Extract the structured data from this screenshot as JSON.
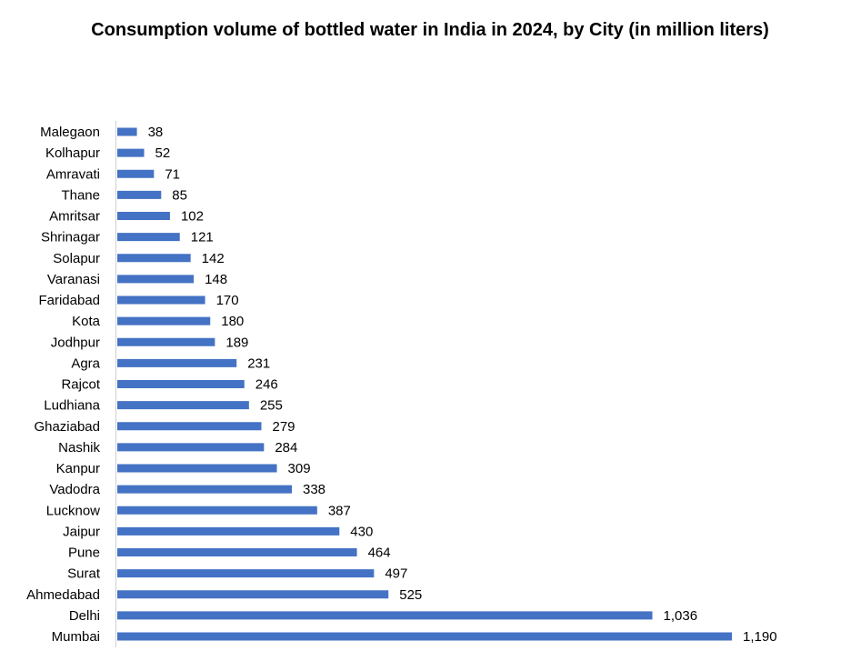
{
  "chart_data": {
    "type": "bar",
    "orientation": "horizontal",
    "title": "Consumption volume of bottled water in India in 2024, by City (in million liters)",
    "xlabel": "",
    "ylabel": "",
    "categories": [
      "Malegaon",
      "Kolhapur",
      "Amravati",
      "Thane",
      "Amritsar",
      "Shrinagar",
      "Solapur",
      "Varanasi",
      "Faridabad",
      "Kota",
      "Jodhpur",
      "Agra",
      "Rajcot",
      "Ludhiana",
      "Ghaziabad",
      "Nashik",
      "Kanpur",
      "Vadodra",
      "Lucknow",
      "Jaipur",
      "Pune",
      "Surat",
      "Ahmedabad",
      "Delhi",
      "Mumbai"
    ],
    "values": [
      38,
      52,
      71,
      85,
      102,
      121,
      142,
      148,
      170,
      180,
      189,
      231,
      246,
      255,
      279,
      284,
      309,
      338,
      387,
      430,
      464,
      497,
      525,
      1036,
      1190
    ],
    "value_labels": [
      "38",
      "52",
      "71",
      "85",
      "102",
      "121",
      "142",
      "148",
      "170",
      "180",
      "189",
      "231",
      "246",
      "255",
      "279",
      "284",
      "309",
      "338",
      "387",
      "430",
      "464",
      "497",
      "525",
      "1,036",
      "1,190"
    ],
    "xlim": [
      0,
      1190
    ],
    "grid": false,
    "legend": "none",
    "colors": {
      "bar": "#4472C4"
    }
  }
}
